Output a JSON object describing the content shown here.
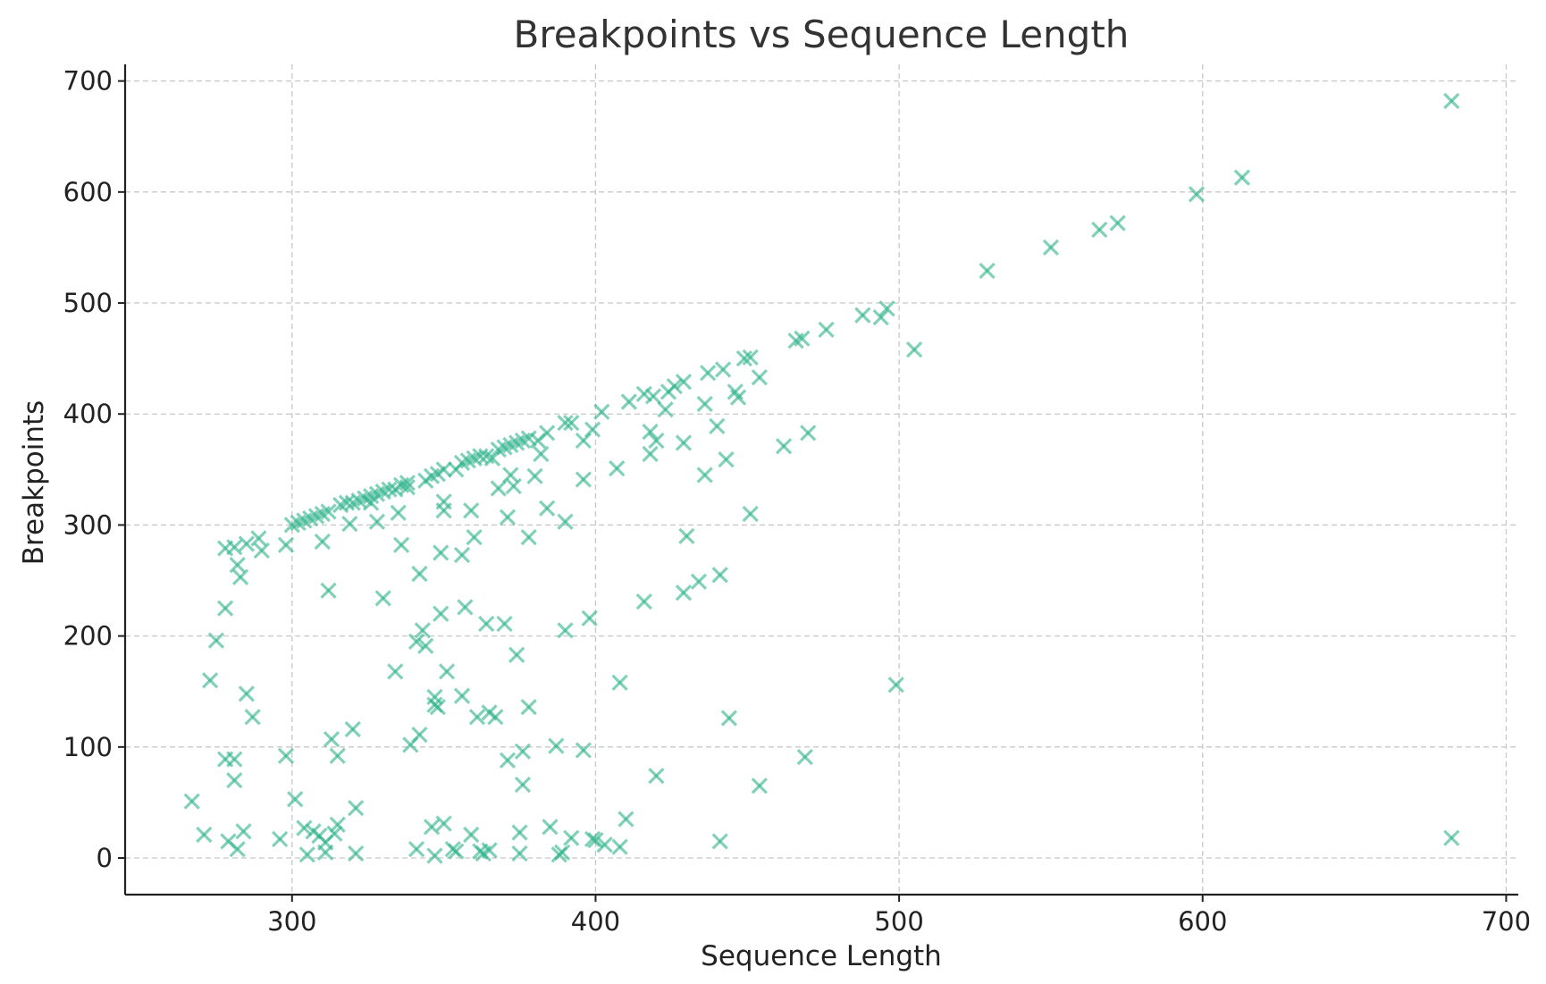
{
  "chart_data": {
    "type": "scatter",
    "title": "Breakpoints vs Sequence Length",
    "xlabel": "Sequence Length",
    "ylabel": "Breakpoints",
    "xlim": [
      245,
      704
    ],
    "ylim": [
      -33,
      715
    ],
    "xticks": [
      300,
      400,
      500,
      600,
      700
    ],
    "yticks": [
      0,
      100,
      200,
      300,
      400,
      500,
      600,
      700
    ],
    "xtick_labels": [
      "300",
      "400",
      "500",
      "600",
      "700"
    ],
    "ytick_labels": [
      "0",
      "100",
      "200",
      "300",
      "400",
      "500",
      "600",
      "700"
    ],
    "grid": true,
    "marker": "x",
    "color": "#2fb38a",
    "points": [
      [
        682,
        682
      ],
      [
        613,
        613
      ],
      [
        598,
        598
      ],
      [
        572,
        572
      ],
      [
        566,
        566
      ],
      [
        550,
        550
      ],
      [
        529,
        529
      ],
      [
        496,
        495
      ],
      [
        494,
        487
      ],
      [
        488,
        489
      ],
      [
        476,
        476
      ],
      [
        468,
        468
      ],
      [
        466,
        466
      ],
      [
        451,
        451
      ],
      [
        449,
        450
      ],
      [
        447,
        415
      ],
      [
        446,
        420
      ],
      [
        454,
        433
      ],
      [
        442,
        440
      ],
      [
        437,
        437
      ],
      [
        440,
        389
      ],
      [
        436,
        409
      ],
      [
        429,
        429
      ],
      [
        426,
        425
      ],
      [
        424,
        420
      ],
      [
        419,
        416
      ],
      [
        416,
        418
      ],
      [
        411,
        411
      ],
      [
        402,
        402
      ],
      [
        399,
        386
      ],
      [
        396,
        376
      ],
      [
        392,
        392
      ],
      [
        390,
        392
      ],
      [
        384,
        383
      ],
      [
        381,
        376
      ],
      [
        378,
        378
      ],
      [
        376,
        376
      ],
      [
        374,
        374
      ],
      [
        372,
        372
      ],
      [
        370,
        370
      ],
      [
        368,
        368
      ],
      [
        366,
        360
      ],
      [
        364,
        362
      ],
      [
        362,
        362
      ],
      [
        360,
        360
      ],
      [
        358,
        358
      ],
      [
        356,
        356
      ],
      [
        354,
        350
      ],
      [
        350,
        350
      ],
      [
        348,
        346
      ],
      [
        346,
        344
      ],
      [
        344,
        340
      ],
      [
        338,
        338
      ],
      [
        336,
        336
      ],
      [
        334,
        332
      ],
      [
        332,
        332
      ],
      [
        330,
        330
      ],
      [
        328,
        328
      ],
      [
        326,
        326
      ],
      [
        324,
        324
      ],
      [
        322,
        322
      ],
      [
        320,
        320
      ],
      [
        318,
        320
      ],
      [
        316,
        318
      ],
      [
        312,
        312
      ],
      [
        310,
        310
      ],
      [
        308,
        308
      ],
      [
        306,
        306
      ],
      [
        304,
        304
      ],
      [
        302,
        302
      ],
      [
        300,
        300
      ],
      [
        298,
        282
      ],
      [
        289,
        288
      ],
      [
        290,
        277
      ],
      [
        285,
        283
      ],
      [
        281,
        280
      ],
      [
        278,
        279
      ],
      [
        282,
        264
      ],
      [
        283,
        253
      ],
      [
        278,
        225
      ],
      [
        275,
        196
      ],
      [
        273,
        160
      ],
      [
        285,
        148
      ],
      [
        287,
        127
      ],
      [
        278,
        89
      ],
      [
        281,
        89
      ],
      [
        281,
        70
      ],
      [
        267,
        51
      ],
      [
        271,
        21
      ],
      [
        279,
        15
      ],
      [
        282,
        8
      ],
      [
        284,
        24
      ],
      [
        296,
        17
      ],
      [
        298,
        92
      ],
      [
        301,
        53
      ],
      [
        304,
        27
      ],
      [
        305,
        3
      ],
      [
        307,
        24
      ],
      [
        309,
        20
      ],
      [
        311,
        5
      ],
      [
        311,
        14
      ],
      [
        313,
        107
      ],
      [
        314,
        22
      ],
      [
        315,
        92
      ],
      [
        315,
        30
      ],
      [
        320,
        116
      ],
      [
        321,
        45
      ],
      [
        321,
        4
      ],
      [
        312,
        241
      ],
      [
        319,
        301
      ],
      [
        328,
        303
      ],
      [
        330,
        234
      ],
      [
        334,
        168
      ],
      [
        335,
        311
      ],
      [
        336,
        282
      ],
      [
        339,
        102
      ],
      [
        341,
        8
      ],
      [
        342,
        111
      ],
      [
        342,
        256
      ],
      [
        341,
        195
      ],
      [
        343,
        205
      ],
      [
        344,
        191
      ],
      [
        346,
        28
      ],
      [
        347,
        2
      ],
      [
        347,
        145
      ],
      [
        347,
        138
      ],
      [
        348,
        136
      ],
      [
        350,
        31
      ],
      [
        349,
        220
      ],
      [
        349,
        275
      ],
      [
        350,
        313
      ],
      [
        350,
        321
      ],
      [
        351,
        168
      ],
      [
        353,
        8
      ],
      [
        354,
        6
      ],
      [
        356,
        146
      ],
      [
        356,
        273
      ],
      [
        357,
        226
      ],
      [
        359,
        313
      ],
      [
        359,
        21
      ],
      [
        360,
        289
      ],
      [
        361,
        127
      ],
      [
        362,
        6
      ],
      [
        363,
        4
      ],
      [
        364,
        211
      ],
      [
        365,
        131
      ],
      [
        365,
        7
      ],
      [
        367,
        127
      ],
      [
        368,
        333
      ],
      [
        370,
        211
      ],
      [
        371,
        88
      ],
      [
        371,
        307
      ],
      [
        372,
        345
      ],
      [
        373,
        335
      ],
      [
        374,
        183
      ],
      [
        375,
        23
      ],
      [
        375,
        4
      ],
      [
        376,
        96
      ],
      [
        376,
        66
      ],
      [
        378,
        136
      ],
      [
        378,
        289
      ],
      [
        380,
        344
      ],
      [
        382,
        364
      ],
      [
        384,
        315
      ],
      [
        385,
        28
      ],
      [
        387,
        101
      ],
      [
        388,
        3
      ],
      [
        389,
        5
      ],
      [
        390,
        205
      ],
      [
        390,
        303
      ],
      [
        392,
        18
      ],
      [
        396,
        97
      ],
      [
        396,
        341
      ],
      [
        398,
        216
      ],
      [
        399,
        17
      ],
      [
        400,
        16
      ],
      [
        403,
        12
      ],
      [
        407,
        351
      ],
      [
        408,
        10
      ],
      [
        408,
        158
      ],
      [
        410,
        35
      ],
      [
        416,
        231
      ],
      [
        418,
        364
      ],
      [
        418,
        384
      ],
      [
        420,
        376
      ],
      [
        420,
        74
      ],
      [
        423,
        404
      ],
      [
        429,
        239
      ],
      [
        429,
        374
      ],
      [
        430,
        290
      ],
      [
        434,
        249
      ],
      [
        436,
        345
      ],
      [
        441,
        15
      ],
      [
        441,
        255
      ],
      [
        443,
        359
      ],
      [
        444,
        126
      ],
      [
        451,
        310
      ],
      [
        454,
        65
      ],
      [
        462,
        371
      ],
      [
        469,
        91
      ],
      [
        470,
        383
      ],
      [
        499,
        156
      ],
      [
        505,
        458
      ],
      [
        682,
        18
      ],
      [
        310,
        285
      ],
      [
        326,
        320
      ],
      [
        338,
        334
      ]
    ]
  }
}
